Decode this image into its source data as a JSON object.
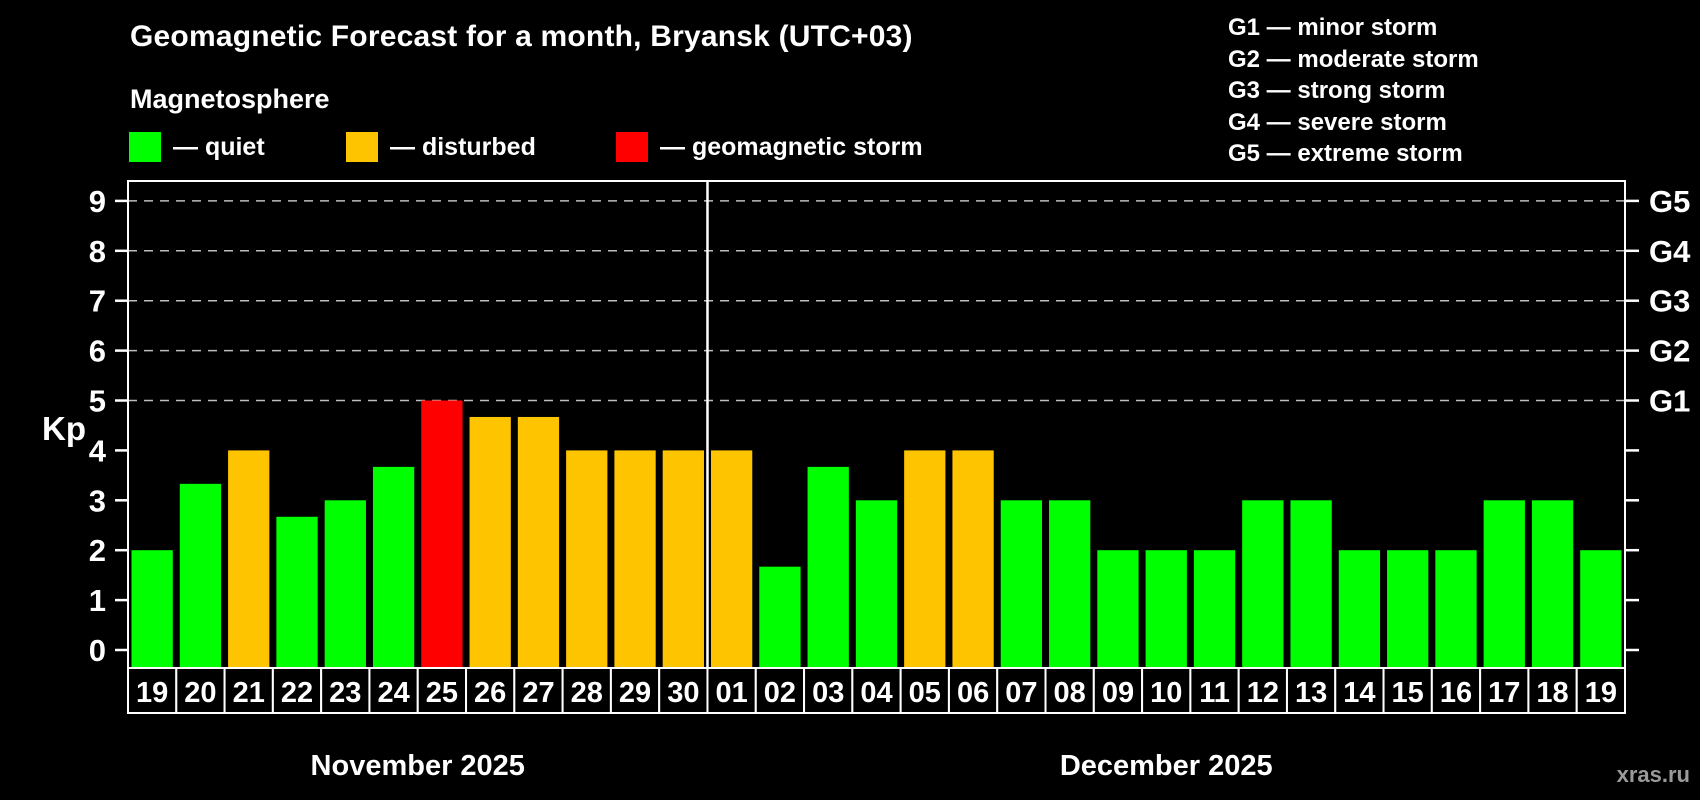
{
  "title": "Geomagnetic Forecast for a month, Bryansk (UTC+03)",
  "subtitle": "Magnetosphere",
  "status_legend": {
    "items": [
      {
        "status": "quiet",
        "label": "— quiet",
        "color": "#00ff00"
      },
      {
        "status": "disturbed",
        "label": "— disturbed",
        "color": "#ffc400"
      },
      {
        "status": "storm",
        "label": "— geomagnetic storm",
        "color": "#ff0000"
      }
    ]
  },
  "g_scale_legend": {
    "items": [
      "G1 — minor storm",
      "G2 — moderate storm",
      "G3 — strong storm",
      "G4 — severe storm",
      "G5 — extreme storm"
    ]
  },
  "watermark": "xras.ru",
  "chart_data": {
    "type": "bar",
    "ylabel": "Kp",
    "y_ticks": [
      0,
      1,
      2,
      3,
      4,
      5,
      6,
      7,
      8,
      9
    ],
    "ylim": [
      -0.4,
      9.4
    ],
    "gridlines_at": [
      5,
      6,
      7,
      8,
      9
    ],
    "grid": "dashed horizontal lines only at G-storm levels",
    "legend_position": "top",
    "right_axis_labels": [
      {
        "label": "G1",
        "kp": 5
      },
      {
        "label": "G2",
        "kp": 6
      },
      {
        "label": "G3",
        "kp": 7
      },
      {
        "label": "G4",
        "kp": 8
      },
      {
        "label": "G5",
        "kp": 9
      }
    ],
    "colors": {
      "quiet": "#00ff00",
      "disturbed": "#ffc400",
      "storm": "#ff0000"
    },
    "months": [
      {
        "label": "November 2025",
        "days": [
          {
            "date": "19",
            "kp": 2.0,
            "status": "quiet"
          },
          {
            "date": "20",
            "kp": 3.33,
            "status": "quiet"
          },
          {
            "date": "21",
            "kp": 4.0,
            "status": "disturbed"
          },
          {
            "date": "22",
            "kp": 2.67,
            "status": "quiet"
          },
          {
            "date": "23",
            "kp": 3.0,
            "status": "quiet"
          },
          {
            "date": "24",
            "kp": 3.67,
            "status": "quiet"
          },
          {
            "date": "25",
            "kp": 5.0,
            "status": "storm"
          },
          {
            "date": "26",
            "kp": 4.67,
            "status": "disturbed"
          },
          {
            "date": "27",
            "kp": 4.67,
            "status": "disturbed"
          },
          {
            "date": "28",
            "kp": 4.0,
            "status": "disturbed"
          },
          {
            "date": "29",
            "kp": 4.0,
            "status": "disturbed"
          },
          {
            "date": "30",
            "kp": 4.0,
            "status": "disturbed"
          }
        ]
      },
      {
        "label": "December 2025",
        "days": [
          {
            "date": "01",
            "kp": 4.0,
            "status": "disturbed"
          },
          {
            "date": "02",
            "kp": 1.67,
            "status": "quiet"
          },
          {
            "date": "03",
            "kp": 3.67,
            "status": "quiet"
          },
          {
            "date": "04",
            "kp": 3.0,
            "status": "quiet"
          },
          {
            "date": "05",
            "kp": 4.0,
            "status": "disturbed"
          },
          {
            "date": "06",
            "kp": 4.0,
            "status": "disturbed"
          },
          {
            "date": "07",
            "kp": 3.0,
            "status": "quiet"
          },
          {
            "date": "08",
            "kp": 3.0,
            "status": "quiet"
          },
          {
            "date": "09",
            "kp": 2.0,
            "status": "quiet"
          },
          {
            "date": "10",
            "kp": 2.0,
            "status": "quiet"
          },
          {
            "date": "11",
            "kp": 2.0,
            "status": "quiet"
          },
          {
            "date": "12",
            "kp": 3.0,
            "status": "quiet"
          },
          {
            "date": "13",
            "kp": 3.0,
            "status": "quiet"
          },
          {
            "date": "14",
            "kp": 2.0,
            "status": "quiet"
          },
          {
            "date": "15",
            "kp": 2.0,
            "status": "quiet"
          },
          {
            "date": "16",
            "kp": 2.0,
            "status": "quiet"
          },
          {
            "date": "17",
            "kp": 3.0,
            "status": "quiet"
          },
          {
            "date": "18",
            "kp": 3.0,
            "status": "quiet"
          },
          {
            "date": "19",
            "kp": 2.0,
            "status": "quiet"
          }
        ]
      }
    ]
  }
}
